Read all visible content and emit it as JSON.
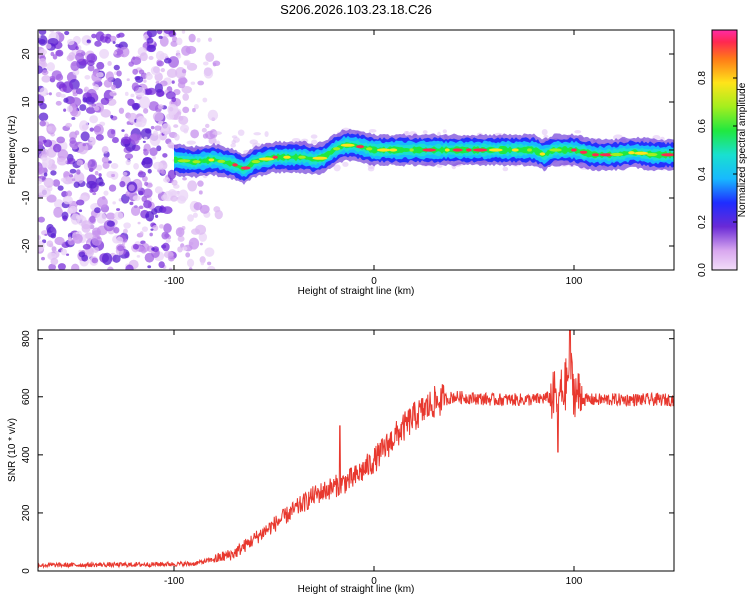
{
  "title": "S206.2026.103.23.18.C26",
  "chart_data": [
    {
      "type": "heatmap",
      "name": "spectrogram",
      "xlabel": "Height of straight line (km)",
      "ylabel": "Frequency (Hz)",
      "xlim": [
        -168,
        150
      ],
      "ylim": [
        -25,
        25
      ],
      "xticks": [
        -100,
        0,
        100
      ],
      "xtick_labels": [
        "-100",
        "0",
        "100"
      ],
      "yticks": [
        -20,
        -10,
        0,
        10,
        20
      ],
      "ytick_labels": [
        "-20",
        "-10",
        "0",
        "10",
        "20"
      ],
      "ridge_line": {
        "x": [
          -100,
          -90,
          -80,
          -70,
          -65,
          -60,
          -55,
          -50,
          -40,
          -35,
          -30,
          -25,
          -20,
          -15,
          -10,
          -5,
          0,
          10,
          20,
          40,
          60,
          70,
          80,
          85,
          90,
          95,
          100,
          110,
          120,
          130,
          140,
          150
        ],
        "freq": [
          -2,
          -2.5,
          -2,
          -3,
          -4,
          -2.5,
          -2,
          -1.5,
          -1.5,
          -1.5,
          -2,
          -1.5,
          0,
          1,
          1,
          0.5,
          0,
          0,
          0,
          0,
          0,
          0,
          0,
          -1,
          0,
          0,
          0,
          -1,
          -1,
          -0.5,
          -1,
          -1
        ]
      },
      "colorbar": {
        "label": "Normalized spectral amplitude",
        "range": [
          0,
          1
        ],
        "ticks": [
          0.0,
          0.2,
          0.4,
          0.6,
          0.8
        ],
        "tick_labels": [
          "0.0",
          "0.2",
          "0.4",
          "0.6",
          "0.8"
        ]
      }
    },
    {
      "type": "line",
      "name": "snr",
      "xlabel": "Height of straight line (km)",
      "ylabel": "SNR (10 * v/v)",
      "xlim": [
        -168,
        150
      ],
      "ylim": [
        0,
        830
      ],
      "xticks": [
        -100,
        0,
        100
      ],
      "xtick_labels": [
        "-100",
        "0",
        "100"
      ],
      "yticks": [
        0,
        200,
        400,
        600,
        800
      ],
      "ytick_labels": [
        "0",
        "200",
        "400",
        "600",
        "800"
      ],
      "color": "#e8382e",
      "trend": {
        "x": [
          -168,
          -120,
          -90,
          -80,
          -70,
          -60,
          -50,
          -40,
          -30,
          -20,
          -10,
          0,
          10,
          20,
          30,
          40,
          60,
          80,
          90,
          95,
          98,
          100,
          105,
          120,
          150
        ],
        "y": [
          20,
          22,
          25,
          40,
          60,
          110,
          160,
          210,
          260,
          290,
          320,
          380,
          460,
          530,
          580,
          600,
          590,
          590,
          600,
          620,
          700,
          620,
          590,
          590,
          590
        ]
      },
      "spikes": [
        {
          "x": -17,
          "y": 500
        },
        {
          "x": 98,
          "y": 830
        },
        {
          "x": 92,
          "y": 410
        }
      ]
    }
  ]
}
